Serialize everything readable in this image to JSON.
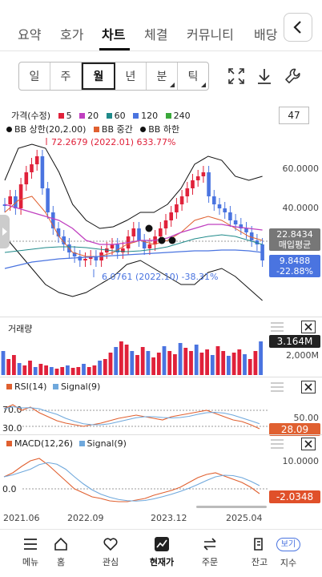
{
  "tabs": [
    "요약",
    "호가",
    "차트",
    "체결",
    "커뮤니티",
    "배당"
  ],
  "more_icon": "chevron-left-icon",
  "periods": [
    "일",
    "주",
    "월",
    "년",
    "분",
    "틱"
  ],
  "tools": [
    "expand-icon",
    "download-icon",
    "wrench-icon"
  ],
  "top_right_value": "47",
  "legend1": {
    "title": "가격(수정)",
    "ma5": "5",
    "ma20": "20",
    "ma60": "60",
    "ma120": "120",
    "ma240": "240"
  },
  "legend2": {
    "bb_upper": "BB 상한(20,2.00)",
    "bb_mid": "BB 중간",
    "bb_lower": "BB 하한"
  },
  "annotations": {
    "high": "72.2679 (2022.01) 633.77%",
    "low": "6.0761 (2022.10) -38.31%"
  },
  "price_axis": {
    "p60": "60.0000",
    "p40": "40.0000"
  },
  "avg_price": {
    "value": "22.8434",
    "label": "매입평균"
  },
  "current": {
    "value": "9.8488",
    "change": "-22.88%"
  },
  "volume": {
    "title": "거래량",
    "value": "3.164M",
    "axis": "2,000M"
  },
  "rsi": {
    "title": "RSI(14)",
    "signal": "Signal(9)",
    "l70": "70.0",
    "l30": "30.0",
    "axis50": "50.00",
    "value": "28.09"
  },
  "macd": {
    "title": "MACD(12,26)",
    "signal": "Signal(9)",
    "axis10": "10.0000",
    "l0": "0.0",
    "value": "-2.0348"
  },
  "dates": [
    "2021.06",
    "2022.09",
    "2023.12",
    "2025.04"
  ],
  "nav": [
    {
      "label": "메뉴",
      "icon": "menu-icon"
    },
    {
      "label": "홈",
      "icon": "home-icon"
    },
    {
      "label": "관심",
      "icon": "heart-icon"
    },
    {
      "label": "현재가",
      "icon": "chart-icon"
    },
    {
      "label": "주문",
      "icon": "swap-icon"
    },
    {
      "label": "잔고",
      "icon": "wallet-icon"
    },
    {
      "label": "지수",
      "icon": "index-icon"
    }
  ],
  "view_badge": "보기",
  "colors": {
    "up": "#e0213a",
    "down": "#4a74e0",
    "ma5": "#e0213a",
    "ma20": "#c040c0",
    "ma60": "#1f8a8a",
    "ma120": "#4a74e0",
    "ma240": "#3aa83a",
    "bbmid": "#e06030"
  }
}
